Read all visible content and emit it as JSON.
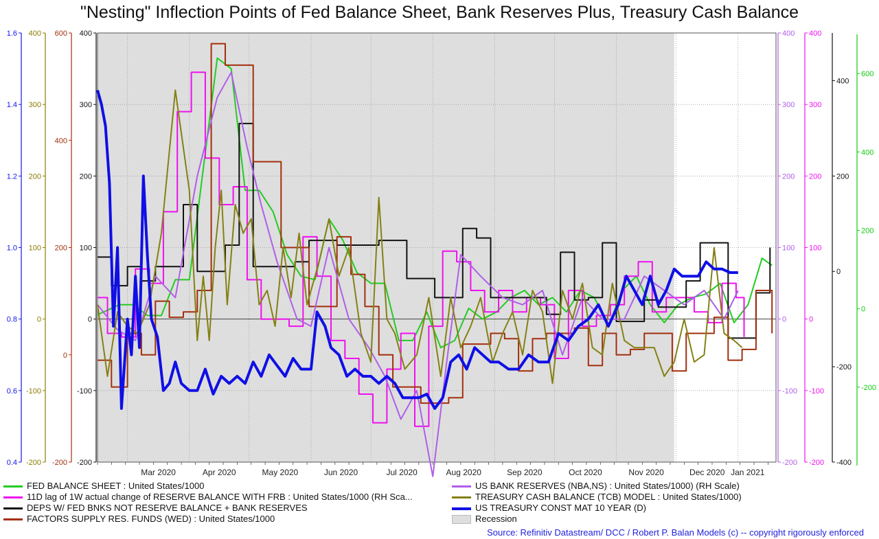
{
  "chart_data": {
    "type": "line",
    "title": "\"Nesting\" Inflection Points of Fed Balance Sheet, Bank Reserves Plus, Treasury Cash Balance",
    "x_tick_labels": [
      "Mar 2020",
      "Apr 2020",
      "May 2020",
      "Jun 2020",
      "Jul 2020",
      "Aug 2020",
      "Sep 2020",
      "Oct 2020",
      "Nov 2020",
      "Dec 2020",
      "Jan 2021"
    ],
    "x_range": [
      "2020-02-15",
      "2021-01-20"
    ],
    "x_ticks": [
      "2020-03-01",
      "2020-04-01",
      "2020-05-01",
      "2020-06-01",
      "2020-07-01",
      "2020-08-01",
      "2020-09-01",
      "2020-10-01",
      "2020-11-01",
      "2020-12-01",
      "2021-01-01"
    ],
    "recession": {
      "start": "2020-02-15",
      "end": "2020-11-30",
      "label": "Recession",
      "color": "#dedede"
    },
    "zero_line": true,
    "grid": true,
    "axes": [
      {
        "id": "ten_year",
        "side": "left",
        "color": "#1515e8",
        "min": 0.4,
        "max": 1.6,
        "ticks": [
          "0.4",
          "0.6",
          "0.8",
          "1.0",
          "1.2",
          "1.4",
          "1.6"
        ]
      },
      {
        "id": "tcb",
        "side": "left",
        "color": "#8a7c00",
        "min": -200,
        "max": 400,
        "ticks": [
          "-200",
          "-100",
          "0",
          "100",
          "200",
          "300",
          "400"
        ]
      },
      {
        "id": "wed",
        "side": "left",
        "color": "#a32f0d",
        "min": -200,
        "max": 600,
        "ticks": [
          "-200",
          "0",
          "200",
          "400",
          "600"
        ]
      },
      {
        "id": "fed",
        "side": "left",
        "color": "#111111",
        "min": -200,
        "max": 400,
        "ticks": [
          "-200",
          "-100",
          "0",
          "100",
          "200",
          "300",
          "400"
        ]
      },
      {
        "id": "nba",
        "side": "right",
        "color": "#b05ee8",
        "min": -200,
        "max": 400,
        "ticks": [
          "-200",
          "-100",
          "0",
          "100",
          "200",
          "300",
          "400"
        ]
      },
      {
        "id": "rbf",
        "side": "right",
        "color": "#ee11ee",
        "min": -200,
        "max": 400,
        "ticks": [
          "-200",
          "-100",
          "0",
          "100",
          "200",
          "300",
          "400"
        ]
      },
      {
        "id": "deps",
        "side": "right",
        "color": "#111111",
        "min": -400,
        "max": 500,
        "ticks": [
          "-400",
          "-200",
          "0",
          "200",
          "400"
        ]
      },
      {
        "id": "bal",
        "side": "right",
        "color": "#11cc11",
        "min": -400,
        "max": 700,
        "ticks": [
          "-200",
          "0",
          "200",
          "400",
          "600"
        ]
      }
    ],
    "series": [
      {
        "name": "FED BALANCE SHEET : United States/1000",
        "axis": "fed",
        "color": "#22cc22",
        "width": 2,
        "step": false,
        "x": [
          "2020-02-15",
          "2020-02-26",
          "2020-03-04",
          "2020-03-11",
          "2020-03-18",
          "2020-03-25",
          "2020-04-01",
          "2020-04-08",
          "2020-04-15",
          "2020-04-22",
          "2020-04-29",
          "2020-05-06",
          "2020-05-13",
          "2020-05-20",
          "2020-05-27",
          "2020-06-03",
          "2020-06-10",
          "2020-06-17",
          "2020-06-24",
          "2020-07-01",
          "2020-07-08",
          "2020-07-15",
          "2020-07-22",
          "2020-07-29",
          "2020-08-05",
          "2020-08-12",
          "2020-08-19",
          "2020-08-26",
          "2020-09-02",
          "2020-09-09",
          "2020-09-16",
          "2020-09-23",
          "2020-09-30",
          "2020-10-07",
          "2020-10-14",
          "2020-10-21",
          "2020-10-28",
          "2020-11-04",
          "2020-11-11",
          "2020-11-18",
          "2020-11-25",
          "2020-12-02",
          "2020-12-09",
          "2020-12-16",
          "2020-12-23",
          "2020-12-30",
          "2021-01-06",
          "2021-01-13",
          "2021-01-18"
        ],
        "y": [
          6,
          20,
          20,
          5,
          5,
          55,
          55,
          210,
          365,
          350,
          180,
          180,
          150,
          90,
          60,
          55,
          140,
          110,
          65,
          50,
          50,
          -30,
          -30,
          10,
          -40,
          -30,
          15,
          0,
          10,
          30,
          40,
          20,
          30,
          10,
          40,
          30,
          -10,
          40,
          60,
          20,
          -5,
          20,
          30,
          35,
          50,
          -5,
          20,
          85,
          75
        ]
      },
      {
        "name": "11D lag of 1W actual change of RESERVE BALANCE WITH FRB : United States/1000 (RH Sca...",
        "axis": "rbf",
        "color": "#ee11ee",
        "width": 2,
        "step": true,
        "x": [
          "2020-02-15",
          "2020-02-20",
          "2020-02-27",
          "2020-03-05",
          "2020-03-12",
          "2020-03-19",
          "2020-03-26",
          "2020-04-02",
          "2020-04-09",
          "2020-04-16",
          "2020-04-23",
          "2020-04-30",
          "2020-05-07",
          "2020-05-14",
          "2020-05-21",
          "2020-05-28",
          "2020-06-04",
          "2020-06-11",
          "2020-06-18",
          "2020-06-25",
          "2020-07-02",
          "2020-07-09",
          "2020-07-16",
          "2020-07-23",
          "2020-07-30",
          "2020-08-06",
          "2020-08-13",
          "2020-08-20",
          "2020-08-27",
          "2020-09-03",
          "2020-09-10",
          "2020-09-17",
          "2020-09-24",
          "2020-10-01",
          "2020-10-08",
          "2020-10-15",
          "2020-10-22",
          "2020-10-29",
          "2020-11-05",
          "2020-11-12",
          "2020-11-19",
          "2020-11-26",
          "2020-12-03",
          "2020-12-10",
          "2020-12-17",
          "2020-12-24",
          "2020-12-31",
          "2021-01-04"
        ],
        "y": [
          30,
          -20,
          -25,
          70,
          50,
          150,
          290,
          345,
          225,
          160,
          185,
          55,
          0,
          0,
          -10,
          115,
          60,
          -30,
          -55,
          -105,
          -145,
          -70,
          -20,
          -150,
          -10,
          95,
          80,
          40,
          10,
          40,
          10,
          30,
          20,
          -55,
          40,
          -10,
          5,
          20,
          60,
          80,
          10,
          30,
          30,
          10,
          -5,
          50,
          30,
          -25
        ]
      },
      {
        "name": "DEPS W/ FED BNKS NOT RESERVE BALANCE + BANK RESERVES",
        "axis": "deps",
        "color": "#111111",
        "width": 2,
        "step": true,
        "x": [
          "2020-02-15",
          "2020-02-22",
          "2020-03-01",
          "2020-03-08",
          "2020-03-15",
          "2020-03-22",
          "2020-03-29",
          "2020-04-05",
          "2020-04-12",
          "2020-04-19",
          "2020-04-26",
          "2020-05-03",
          "2020-05-10",
          "2020-05-17",
          "2020-05-24",
          "2020-05-31",
          "2020-06-07",
          "2020-06-14",
          "2020-06-21",
          "2020-06-28",
          "2020-07-05",
          "2020-07-12",
          "2020-07-19",
          "2020-07-26",
          "2020-08-02",
          "2020-08-09",
          "2020-08-16",
          "2020-08-23",
          "2020-08-30",
          "2020-09-06",
          "2020-09-13",
          "2020-09-20",
          "2020-09-27",
          "2020-10-04",
          "2020-10-11",
          "2020-10-18",
          "2020-10-25",
          "2020-11-01",
          "2020-11-08",
          "2020-11-15",
          "2020-11-22",
          "2020-11-29",
          "2020-12-06",
          "2020-12-13",
          "2020-12-20",
          "2020-12-27",
          "2021-01-03",
          "2021-01-10",
          "2021-01-17"
        ],
        "y": [
          30,
          -30,
          10,
          -20,
          10,
          10,
          140,
          0,
          0,
          55,
          310,
          10,
          10,
          10,
          20,
          65,
          65,
          55,
          55,
          55,
          65,
          65,
          -15,
          -15,
          -55,
          -55,
          90,
          70,
          -55,
          -55,
          -55,
          -55,
          -90,
          40,
          -60,
          -55,
          60,
          -105,
          -105,
          -60,
          -75,
          -75,
          -20,
          60,
          60,
          -140,
          -140,
          -45,
          50
        ]
      },
      {
        "name": "FACTORS SUPPLY RES. FUNDS (WED) : United States/1000",
        "axis": "wed",
        "color": "#a32f0d",
        "width": 2,
        "step": true,
        "x": [
          "2020-02-15",
          "2020-02-22",
          "2020-03-01",
          "2020-03-08",
          "2020-03-15",
          "2020-03-22",
          "2020-03-29",
          "2020-04-05",
          "2020-04-12",
          "2020-04-19",
          "2020-04-26",
          "2020-05-03",
          "2020-05-10",
          "2020-05-17",
          "2020-05-24",
          "2020-05-31",
          "2020-06-07",
          "2020-06-14",
          "2020-06-21",
          "2020-06-28",
          "2020-07-05",
          "2020-07-12",
          "2020-07-19",
          "2020-07-26",
          "2020-08-02",
          "2020-08-09",
          "2020-08-16",
          "2020-08-23",
          "2020-08-30",
          "2020-09-06",
          "2020-09-13",
          "2020-09-20",
          "2020-09-27",
          "2020-10-04",
          "2020-10-11",
          "2020-10-18",
          "2020-10-25",
          "2020-11-01",
          "2020-11-08",
          "2020-11-15",
          "2020-11-22",
          "2020-11-29",
          "2020-12-06",
          "2020-12-13",
          "2020-12-20",
          "2020-12-27",
          "2021-01-03",
          "2021-01-10",
          "2021-01-18"
        ],
        "y": [
          -10,
          -60,
          40,
          0,
          100,
          70,
          80,
          120,
          580,
          540,
          540,
          360,
          360,
          200,
          200,
          90,
          90,
          220,
          150,
          90,
          0,
          -60,
          -60,
          -90,
          -90,
          -80,
          20,
          20,
          40,
          30,
          -30,
          30,
          40,
          40,
          50,
          -20,
          40,
          0,
          10,
          40,
          40,
          -30,
          40,
          40,
          70,
          -10,
          10,
          120,
          40
        ]
      },
      {
        "name": "US BANK RESERVES (NBA,NS) : United States/1000) (RH Scale)",
        "axis": "nba",
        "color": "#b05ee8",
        "width": 2,
        "step": false,
        "x": [
          "2020-02-15",
          "2020-02-25",
          "2020-03-05",
          "2020-03-15",
          "2020-03-25",
          "2020-04-05",
          "2020-04-15",
          "2020-04-22",
          "2020-04-30",
          "2020-05-07",
          "2020-05-15",
          "2020-05-25",
          "2020-06-01",
          "2020-06-10",
          "2020-06-20",
          "2020-06-30",
          "2020-07-08",
          "2020-07-16",
          "2020-07-24",
          "2020-08-01",
          "2020-08-08",
          "2020-08-15",
          "2020-08-25",
          "2020-09-05",
          "2020-09-15",
          "2020-09-25",
          "2020-10-05",
          "2020-10-15",
          "2020-10-25",
          "2020-11-05",
          "2020-11-15",
          "2020-11-25",
          "2020-12-05",
          "2020-12-15",
          "2020-12-25",
          "2021-01-01"
        ],
        "y": [
          20,
          -15,
          -30,
          60,
          30,
          200,
          310,
          345,
          240,
          160,
          80,
          0,
          -10,
          100,
          0,
          -40,
          -80,
          -140,
          -100,
          -220,
          -60,
          90,
          60,
          30,
          20,
          40,
          -50,
          30,
          0,
          0,
          60,
          40,
          20,
          40,
          0,
          40
        ]
      },
      {
        "name": "TREASURY CASH BALANCE (TCB) MODEL : United States/1000)",
        "axis": "tcb",
        "color": "#848014",
        "width": 2,
        "step": false,
        "x": [
          "2020-02-15",
          "2020-02-20",
          "2020-02-25",
          "2020-03-01",
          "2020-03-06",
          "2020-03-12",
          "2020-03-18",
          "2020-03-25",
          "2020-04-01",
          "2020-04-05",
          "2020-04-08",
          "2020-04-11",
          "2020-04-14",
          "2020-04-17",
          "2020-04-20",
          "2020-04-24",
          "2020-04-28",
          "2020-05-02",
          "2020-05-06",
          "2020-05-10",
          "2020-05-14",
          "2020-05-18",
          "2020-05-22",
          "2020-05-26",
          "2020-05-30",
          "2020-06-05",
          "2020-06-10",
          "2020-06-15",
          "2020-06-20",
          "2020-06-26",
          "2020-07-01",
          "2020-07-05",
          "2020-07-09",
          "2020-07-13",
          "2020-07-18",
          "2020-07-24",
          "2020-07-30",
          "2020-08-05",
          "2020-08-10",
          "2020-08-15",
          "2020-08-20",
          "2020-08-25",
          "2020-08-31",
          "2020-09-05",
          "2020-09-10",
          "2020-09-15",
          "2020-09-20",
          "2020-09-25",
          "2020-09-30",
          "2020-10-05",
          "2020-10-10",
          "2020-10-15",
          "2020-10-20",
          "2020-10-25",
          "2020-10-30",
          "2020-11-05",
          "2020-11-10",
          "2020-11-15",
          "2020-11-20",
          "2020-11-25",
          "2020-11-30",
          "2020-12-05",
          "2020-12-10",
          "2020-12-15",
          "2020-12-20",
          "2020-12-25",
          "2020-12-30",
          "2021-01-03"
        ],
        "y": [
          20,
          -80,
          10,
          -10,
          -20,
          20,
          120,
          320,
          180,
          -30,
          60,
          -30,
          100,
          180,
          20,
          160,
          120,
          140,
          20,
          40,
          -10,
          100,
          30,
          120,
          20,
          80,
          140,
          60,
          100,
          -20,
          -60,
          170,
          0,
          -20,
          -70,
          -50,
          30,
          -80,
          30,
          -40,
          -10,
          30,
          -60,
          -20,
          10,
          -50,
          40,
          10,
          -90,
          40,
          0,
          50,
          -40,
          -50,
          50,
          -30,
          -40,
          -40,
          -40,
          -80,
          -60,
          0,
          -60,
          -50,
          100,
          -20,
          -30,
          -40
        ]
      },
      {
        "name": "US TREASURY CONST MAT 10 YEAR (D)",
        "axis": "ten_year",
        "color": "#0f0fe6",
        "width": 4,
        "step": false,
        "x": [
          "2020-02-15",
          "2020-02-17",
          "2020-02-19",
          "2020-02-21",
          "2020-02-23",
          "2020-02-25",
          "2020-02-27",
          "2020-03-01",
          "2020-03-03",
          "2020-03-05",
          "2020-03-07",
          "2020-03-09",
          "2020-03-11",
          "2020-03-13",
          "2020-03-16",
          "2020-03-19",
          "2020-03-22",
          "2020-03-25",
          "2020-03-28",
          "2020-04-01",
          "2020-04-05",
          "2020-04-09",
          "2020-04-13",
          "2020-04-17",
          "2020-04-21",
          "2020-04-25",
          "2020-04-29",
          "2020-05-03",
          "2020-05-07",
          "2020-05-11",
          "2020-05-15",
          "2020-05-19",
          "2020-05-23",
          "2020-05-27",
          "2020-06-01",
          "2020-06-04",
          "2020-06-08",
          "2020-06-11",
          "2020-06-15",
          "2020-06-19",
          "2020-06-23",
          "2020-06-27",
          "2020-07-01",
          "2020-07-05",
          "2020-07-09",
          "2020-07-13",
          "2020-07-17",
          "2020-07-21",
          "2020-07-25",
          "2020-07-29",
          "2020-08-02",
          "2020-08-06",
          "2020-08-10",
          "2020-08-14",
          "2020-08-18",
          "2020-08-22",
          "2020-08-26",
          "2020-08-30",
          "2020-09-03",
          "2020-09-08",
          "2020-09-13",
          "2020-09-18",
          "2020-09-23",
          "2020-09-28",
          "2020-10-03",
          "2020-10-08",
          "2020-10-13",
          "2020-10-18",
          "2020-10-23",
          "2020-10-28",
          "2020-11-02",
          "2020-11-06",
          "2020-11-10",
          "2020-11-14",
          "2020-11-18",
          "2020-11-22",
          "2020-11-26",
          "2020-11-30",
          "2020-12-04",
          "2020-12-08",
          "2020-12-12",
          "2020-12-16",
          "2020-12-20",
          "2020-12-24",
          "2020-12-28",
          "2021-01-01"
        ],
        "y": [
          1.44,
          1.4,
          1.34,
          1.18,
          0.78,
          1.0,
          0.55,
          0.8,
          0.7,
          0.92,
          0.72,
          1.2,
          0.98,
          0.8,
          0.75,
          0.6,
          0.62,
          0.68,
          0.62,
          0.6,
          0.6,
          0.66,
          0.59,
          0.64,
          0.62,
          0.64,
          0.62,
          0.68,
          0.64,
          0.7,
          0.67,
          0.64,
          0.69,
          0.66,
          0.66,
          0.82,
          0.78,
          0.72,
          0.7,
          0.64,
          0.66,
          0.64,
          0.64,
          0.62,
          0.64,
          0.62,
          0.58,
          0.58,
          0.58,
          0.59,
          0.55,
          0.58,
          0.68,
          0.7,
          0.66,
          0.72,
          0.7,
          0.68,
          0.68,
          0.66,
          0.66,
          0.7,
          0.68,
          0.68,
          0.76,
          0.74,
          0.78,
          0.8,
          0.84,
          0.78,
          0.84,
          0.92,
          0.88,
          0.84,
          0.92,
          0.84,
          0.88,
          0.94,
          0.92,
          0.92,
          0.92,
          0.96,
          0.94,
          0.94,
          0.93,
          0.93
        ]
      }
    ]
  },
  "legend": {
    "recession_label": "Recession"
  },
  "source": "Source: Refinitiv Datastream/ DCC / Robert P. Balan Models (c) -- copyright rigorously enforced"
}
